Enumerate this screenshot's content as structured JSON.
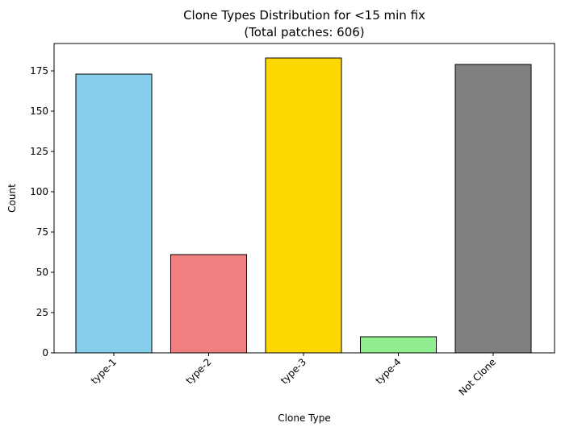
{
  "chart_data": {
    "type": "bar",
    "title": "Clone Types Distribution for <15 min fix",
    "subtitle": "(Total patches: 606)",
    "xlabel": "Clone Type",
    "ylabel": "Count",
    "categories": [
      "type-1",
      "type-2",
      "type-3",
      "type-4",
      "Not Clone"
    ],
    "values": [
      173,
      61,
      183,
      10,
      179
    ],
    "colors": [
      "#87CEEB",
      "#F08080",
      "#FFD700",
      "#90EE90",
      "#808080"
    ],
    "edge_color": "#000000",
    "ylim": [
      0,
      192
    ],
    "yticks": [
      0,
      25,
      50,
      75,
      100,
      125,
      150,
      175
    ],
    "xtick_rotation": 45,
    "grid": false,
    "legend": false
  }
}
